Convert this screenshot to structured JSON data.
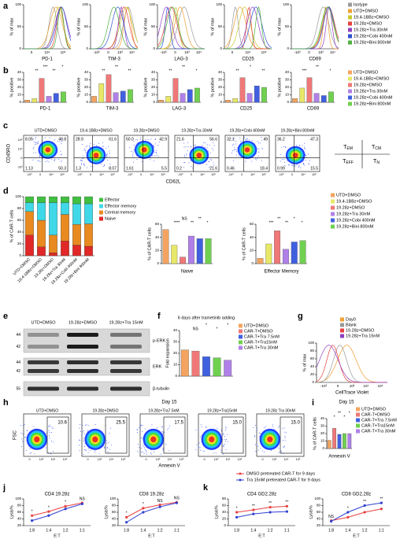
{
  "figure": {
    "a": {
      "letter": "a",
      "ylabel": "% of max",
      "ylim": [
        0,
        100
      ],
      "yticks": [
        0,
        50,
        100
      ],
      "plots": [
        {
          "marker": "PD-1",
          "xticks": [
            "0",
            "10⁴",
            "10⁵"
          ]
        },
        {
          "marker": "TIM-3",
          "xticks": [
            "-10³",
            "0",
            "10³",
            "10⁴"
          ]
        },
        {
          "marker": "LAG-3",
          "xticks": [
            "-10³",
            "0",
            "10³",
            "10⁴"
          ]
        },
        {
          "marker": "CD25",
          "xticks": [
            "0",
            "10⁴",
            "10⁵"
          ]
        },
        {
          "marker": "CD69",
          "xticks": [
            "-10³",
            "0",
            "10³",
            "10⁴"
          ]
        }
      ],
      "legend": [
        {
          "name": "Isotype",
          "color": "#9a9a9a"
        },
        {
          "name": "UTD+DMSO",
          "color": "#f0a030"
        },
        {
          "name": "19.4-1BBz+DMSO",
          "color": "#c8c830"
        },
        {
          "name": "19.28z+DMSO",
          "color": "#e84040"
        },
        {
          "name": "19.28z+Tra 30nM",
          "color": "#9040c0"
        },
        {
          "name": "19.28z+Cobi 400nM",
          "color": "#3050d0"
        },
        {
          "name": "19.28z+Bini 800nM",
          "color": "#50b040"
        }
      ]
    },
    "b": {
      "letter": "b",
      "ylabel": "% positive",
      "legend": [
        {
          "name": "UTD+DMSO",
          "color": "#f4a460"
        },
        {
          "name": "19.4-1BBz+DMSO",
          "color": "#e8e868"
        },
        {
          "name": "19.28z+DMSO",
          "color": "#f07878"
        },
        {
          "name": "19.28z+Tra 30nM",
          "color": "#b080e8"
        },
        {
          "name": "19.28z+Cobi 400nM",
          "color": "#4060e0"
        },
        {
          "name": "19.28z+Bini 800nM",
          "color": "#70d050"
        }
      ],
      "charts": [
        {
          "type": "bar",
          "marker": "PD-1",
          "ylim": [
            0,
            40
          ],
          "yticks": [
            0,
            10,
            20,
            30,
            40
          ],
          "values": [
            3,
            5,
            32,
            8,
            12,
            14
          ],
          "significance": [
            "**",
            "***",
            "**",
            "*"
          ]
        },
        {
          "type": "bar",
          "marker": "TIM-3",
          "ylim": [
            0,
            40
          ],
          "yticks": [
            0,
            10,
            20,
            30,
            40
          ],
          "values": [
            8,
            25,
            37,
            13,
            15,
            17
          ],
          "significance": [
            "**",
            "**",
            "**"
          ]
        },
        {
          "type": "bar",
          "marker": "LAG-3",
          "ylim": [
            0,
            40
          ],
          "yticks": [
            0,
            10,
            20,
            30,
            40
          ],
          "values": [
            3,
            8,
            32,
            12,
            17,
            19
          ],
          "significance": [
            "**",
            "**",
            "*"
          ]
        },
        {
          "type": "bar",
          "marker": "CD25",
          "ylim": [
            0,
            40
          ],
          "yticks": [
            0,
            10,
            20,
            30,
            40
          ],
          "values": [
            3,
            5,
            33,
            12,
            22,
            20
          ],
          "significance": [
            "**",
            "*",
            "**"
          ]
        },
        {
          "type": "bar",
          "marker": "CD69",
          "ylim": [
            0,
            40
          ],
          "yticks": [
            0,
            10,
            20,
            30,
            40
          ],
          "values": [
            5,
            19,
            33,
            12,
            9,
            14
          ],
          "significance": [
            "***",
            "**",
            "*"
          ]
        }
      ]
    },
    "c": {
      "letter": "c",
      "ylabel": "CD45RO",
      "xlabel": "CD62L",
      "xticks": [
        "-10³",
        "0",
        "10⁴",
        "10⁵"
      ],
      "yticks": [
        "10⁵",
        "10⁴",
        "0",
        "-10³"
      ],
      "plots": [
        {
          "title": "UTD+DMSO",
          "quadrants": [
            "8.05",
            "40.8",
            "1.13",
            "50.3"
          ]
        },
        {
          "title": "19.4-1BBz+DMSO",
          "quadrants": [
            "28.9",
            "61.6",
            "1.3",
            "8.07"
          ]
        },
        {
          "title": "19.28z+DMSO",
          "quadrants": [
            "50.0",
            "42.9",
            "1.61",
            "5.5"
          ]
        },
        {
          "title": "19.28z+Tra 30nM",
          "quadrants": [
            "21.6",
            "56.6",
            "0.2",
            "21.6"
          ]
        },
        {
          "title": "19.28z+Cobi 400nM",
          "quadrants": [
            "32.1",
            "49",
            "0.46",
            "18.4"
          ]
        },
        {
          "title": "19.28z+Bini 800nM",
          "quadrants": [
            "36.2",
            "47.3",
            "0.99",
            "15.5"
          ]
        }
      ],
      "key": [
        {
          "main": "T",
          "sub": "EM"
        },
        {
          "main": "T",
          "sub": "CM"
        },
        {
          "main": "T",
          "sub": "EFF"
        },
        {
          "main": "T",
          "sub": "N"
        }
      ]
    },
    "d": {
      "letter": "d",
      "stacked": {
        "type": "stacked",
        "ylabel": "% of CAR-T cells",
        "ylim": [
          0,
          100
        ],
        "yticks": [
          0,
          20,
          40,
          60,
          80,
          100
        ],
        "categories": [
          "UTD+DMSO",
          "19.4-1BBz+DMSO",
          "19.28z+DMSO",
          "19.28z+Tra 30nM",
          "19.28z+Cobi 400nM",
          "19.28z+Bini 800nM"
        ],
        "series": [
          {
            "name": "Effector",
            "color": "#40c040",
            "values": [
              10,
              10,
              10,
              10,
              12,
              12
            ]
          },
          {
            "name": "Effector memory",
            "color": "#40d8e8",
            "values": [
              15,
              30,
              55,
              20,
              35,
              34
            ]
          },
          {
            "name": "Central memory",
            "color": "#e88a20",
            "values": [
              40,
              45,
              30,
              45,
              35,
              38
            ]
          },
          {
            "name": "Naive",
            "color": "#e02828",
            "values": [
              35,
              15,
              5,
              25,
              18,
              16
            ]
          }
        ]
      },
      "legend": [
        {
          "name": "UTD+DMSO",
          "color": "#f4a460"
        },
        {
          "name": "19.4-1BBz+DMSO",
          "color": "#e8e868"
        },
        {
          "name": "19.28z+DMSO",
          "color": "#f07878"
        },
        {
          "name": "19.28z+Tra 30nM",
          "color": "#b080e8"
        },
        {
          "name": "19.28z+Cobi 400nM",
          "color": "#4060e0"
        },
        {
          "name": "19.28z+Bini 800nM",
          "color": "#70d050"
        }
      ],
      "charts": [
        {
          "type": "bar",
          "xlabel": "Naive",
          "ylabel": "% of CAR-T cells",
          "ylim": [
            0,
            60
          ],
          "yticks": [
            0,
            20,
            40,
            60
          ],
          "values": [
            52,
            28,
            10,
            42,
            38,
            38
          ],
          "significance": [
            "****",
            "NS",
            "**",
            "**",
            "*"
          ]
        },
        {
          "type": "bar",
          "xlabel": "Effector Memory",
          "ylabel": "% of CAR-T cells",
          "ylim": [
            0,
            60
          ],
          "yticks": [
            0,
            20,
            40,
            60
          ],
          "values": [
            8,
            30,
            50,
            22,
            33,
            35
          ],
          "significance": [
            "***",
            "**",
            "**",
            "*",
            "*"
          ]
        }
      ]
    },
    "e": {
      "letter": "e",
      "columns": [
        "UTD+DMSO",
        "19.28z+DMSO",
        "19.28z+Tra 15nM"
      ],
      "rows": [
        {
          "name": "p-ERK",
          "kda": [
            "44",
            "42"
          ]
        },
        {
          "name": "ERK",
          "kda": [
            "44",
            "42"
          ]
        },
        {
          "name": "β-tubulin",
          "kda": [
            "55"
          ]
        }
      ]
    },
    "f": {
      "letter": "f",
      "type": "bar",
      "title": "6 days after trametinib adding",
      "ylabel": "Fold expansion",
      "ylim": [
        0,
        40
      ],
      "yticks": [
        0,
        10,
        20,
        30,
        40
      ],
      "values": [
        23,
        22,
        17,
        16,
        14
      ],
      "significance": [
        "NS",
        "*",
        "*",
        "*"
      ],
      "legend": [
        {
          "name": "UTD+DMSO",
          "color": "#f4a460"
        },
        {
          "name": "CAR-T+DMSO",
          "color": "#f07878"
        },
        {
          "name": "CAR-T+Tra 7.5nM",
          "color": "#4060e0"
        },
        {
          "name": "CAR-T+Tra15nM",
          "color": "#70d050"
        },
        {
          "name": "CAR-T+Tra 30nM",
          "color": "#b080e8"
        }
      ]
    },
    "g": {
      "letter": "g",
      "ylabel": "% of max",
      "xlabel": "CellTrace Violet",
      "ylim": [
        0,
        100
      ],
      "yticks": [
        0,
        20,
        40,
        60,
        80,
        100
      ],
      "xticks": [
        "-10³",
        "0",
        "10³",
        "10⁴",
        "10⁵"
      ],
      "legend": [
        {
          "name": "Day0",
          "color": "#f0a030"
        },
        {
          "name": "Blank",
          "color": "#999999"
        },
        {
          "name": "19.28z+DMSO",
          "color": "#e84040"
        },
        {
          "name": "19.28z+Tra 15nM",
          "color": "#9040c0"
        }
      ]
    },
    "h": {
      "letter": "h",
      "title": "Day 15",
      "ylabel": "FSC",
      "xlabel": "Annexin V",
      "xticks": [
        "0",
        "10³",
        "10⁴",
        "10⁵"
      ],
      "plots": [
        {
          "title": "UTD+DMSO",
          "gate": "10.6"
        },
        {
          "title": "19.28z+DMSO",
          "gate": "25.5"
        },
        {
          "title": "19.28z+Tra7.5nM",
          "gate": "17.5"
        },
        {
          "title": "19.28z+Tra15nM",
          "gate": "15.0"
        },
        {
          "title": "19.28z Tra 30nM",
          "gate": "15.0"
        }
      ]
    },
    "i": {
      "letter": "i",
      "type": "bar",
      "title": "Day 15",
      "ylabel": "% of CAR-T cells",
      "xlabel": "Annexin V",
      "ylim": [
        0,
        40
      ],
      "yticks": [
        0,
        10,
        20,
        30,
        40
      ],
      "values": [
        11,
        27,
        19,
        20,
        20
      ],
      "significance": [
        "*",
        "**",
        "*",
        "*"
      ],
      "legend": [
        {
          "name": "UTD+DMSO",
          "color": "#f4a460"
        },
        {
          "name": "CAR-T+DMSO",
          "color": "#f07878"
        },
        {
          "name": "CAR-T+Tra 7.5nM",
          "color": "#4060e0"
        },
        {
          "name": "CAR-T+Tra15nM",
          "color": "#70d050"
        },
        {
          "name": "CAR-T+Tra 30nM",
          "color": "#b080e8"
        }
      ]
    },
    "j": {
      "letter": "j",
      "charts": [
        {
          "type": "line",
          "title": "CD4 19.28z",
          "ylabel": "Lysis%",
          "xlabel": "E:T",
          "categories": [
            "1:8",
            "1:4",
            "1:2",
            "1:1"
          ],
          "ylim": [
            20,
            100
          ],
          "yticks": [
            20,
            40,
            60,
            80,
            100
          ],
          "significance": [
            "*",
            "*",
            "*",
            "NS"
          ],
          "series": [
            {
              "color": "#e84040",
              "values": [
                50,
                62,
                78,
                88
              ]
            },
            {
              "color": "#3040d0",
              "values": [
                35,
                50,
                70,
                85
              ]
            }
          ]
        },
        {
          "type": "line",
          "title": "CD8 19.28z",
          "ylabel": "Lysis%",
          "xlabel": "E:T",
          "categories": [
            "1:8",
            "1:4",
            "1:2",
            "1:1"
          ],
          "ylim": [
            20,
            100
          ],
          "yticks": [
            20,
            40,
            60,
            80,
            100
          ],
          "significance": [
            "*",
            "*",
            "NS",
            "NS"
          ],
          "series": [
            {
              "color": "#e84040",
              "values": [
                45,
                72,
                82,
                90
              ]
            },
            {
              "color": "#3040d0",
              "values": [
                30,
                60,
                76,
                88
              ]
            }
          ]
        }
      ]
    },
    "k": {
      "letter": "k",
      "legend": [
        {
          "name": "DMSO pretreated CAR-T for 9 days",
          "color": "#e84040"
        },
        {
          "name": "Tra 15nM pretreated CAR-T for 9 days",
          "color": "#3040d0"
        }
      ],
      "charts": [
        {
          "type": "line",
          "title": "CD4 GD2.28z",
          "ylabel": "Lysis%",
          "xlabel": "E:T",
          "categories": [
            "1:8",
            "1:4",
            "1:2",
            "1:1"
          ],
          "ylim": [
            0,
            80
          ],
          "yticks": [
            0,
            20,
            40,
            60,
            80
          ],
          "significance": [
            "*",
            "**",
            "**",
            "**"
          ],
          "series": [
            {
              "color": "#e84040",
              "values": [
                40,
                47,
                55,
                58
              ]
            },
            {
              "color": "#3040d0",
              "values": [
                25,
                35,
                40,
                42
              ]
            }
          ]
        },
        {
          "type": "line",
          "title": "CD8 GD2.28z",
          "ylabel": "Lysis%",
          "xlabel": "E:T",
          "categories": [
            "1:8",
            "1:4",
            "1:2",
            "1:1"
          ],
          "ylim": [
            20,
            100
          ],
          "yticks": [
            20,
            40,
            60,
            80,
            100
          ],
          "significance": [
            "NS",
            "*",
            "**",
            "**"
          ],
          "series": [
            {
              "color": "#e84040",
              "values": [
                35,
                45,
                60,
                70
              ]
            },
            {
              "color": "#3040d0",
              "values": [
                33,
                60,
                80,
                88
              ]
            }
          ]
        }
      ]
    }
  }
}
